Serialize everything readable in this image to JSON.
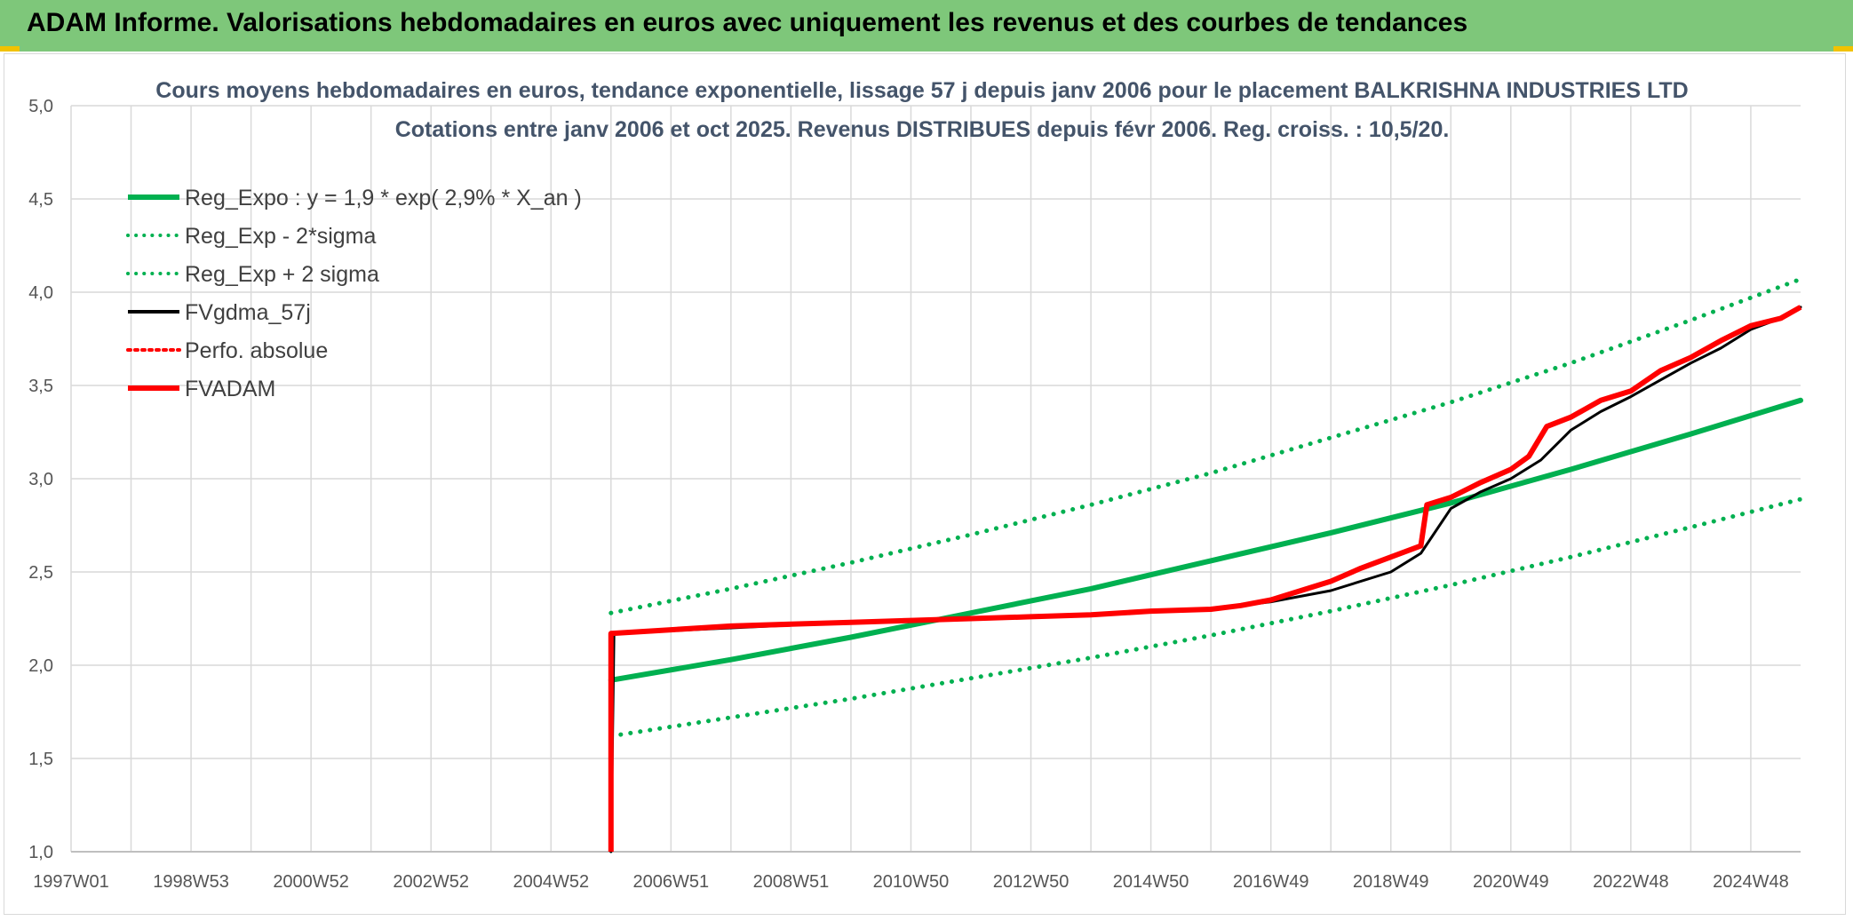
{
  "banner": {
    "title": "ADAM Informe. Valorisations hebdomadaires en euros avec uniquement les revenus et des courbes de tendances"
  },
  "colors": {
    "banner": "#7ec77a",
    "green": "#00b050",
    "red": "#ff0000",
    "black": "#000000",
    "grid": "#d9d9d9"
  },
  "chart_data": {
    "type": "line",
    "title": "Cours moyens hebdomadaires en euros, tendance exponentielle, lissage 57 j depuis janv 2006 pour le placement BALKRISHNA INDUSTRIES LTD",
    "subtitle": "Cotations entre janv 2006 et oct 2025. Revenus DISTRIBUES depuis févr 2006. Reg. croiss. : 10,5/20.",
    "xlabel": "",
    "ylabel": "",
    "x_tick_labels": [
      "1997W01",
      "1998W53",
      "2000W52",
      "2002W52",
      "2004W52",
      "2006W51",
      "2008W51",
      "2010W50",
      "2012W50",
      "2014W50",
      "2016W49",
      "2018W49",
      "2020W49",
      "2022W48",
      "2024W48"
    ],
    "x_range": [
      1997.0,
      2025.83
    ],
    "ylim": [
      1.0,
      5.0
    ],
    "y_ticks": [
      "1,0",
      "1,5",
      "2,0",
      "2,5",
      "3,0",
      "3,5",
      "4,0",
      "4,5",
      "5,0"
    ],
    "grid": true,
    "legend_position": "top-left",
    "legend": [
      {
        "name": "Reg_Expo : y = 1,9 * exp( 2,9% *  X_an )",
        "color": "#00b050",
        "style": "solid"
      },
      {
        "name": "Reg_Exp - 2*sigma",
        "color": "#00b050",
        "style": "dotted"
      },
      {
        "name": "Reg_Exp + 2 sigma",
        "color": "#00b050",
        "style": "dotted"
      },
      {
        "name": "FVgdma_57j",
        "color": "#000000",
        "style": "solid"
      },
      {
        "name": "Perfo. absolue",
        "color": "#ff0000",
        "style": "dotted"
      },
      {
        "name": "FVADAM",
        "color": "#ff0000",
        "style": "solid"
      }
    ],
    "series": [
      {
        "name": "Reg_Expo : y = 1,9 * exp( 2,9% *  X_an )",
        "color": "#00b050",
        "style": "solid",
        "x": [
          2006.0,
          2008.0,
          2010.0,
          2012.0,
          2014.0,
          2016.0,
          2018.0,
          2020.0,
          2022.0,
          2024.0,
          2025.83
        ],
        "y": [
          1.92,
          2.03,
          2.15,
          2.28,
          2.41,
          2.56,
          2.71,
          2.87,
          3.05,
          3.24,
          3.42
        ]
      },
      {
        "name": "Reg_Exp - 2*sigma",
        "color": "#00b050",
        "style": "dotted",
        "x": [
          2006.0,
          2008.0,
          2010.0,
          2012.0,
          2014.0,
          2016.0,
          2018.0,
          2020.0,
          2022.0,
          2024.0,
          2025.83
        ],
        "y": [
          1.62,
          1.72,
          1.82,
          1.93,
          2.04,
          2.16,
          2.29,
          2.43,
          2.58,
          2.74,
          2.89
        ]
      },
      {
        "name": "Reg_Exp + 2 sigma",
        "color": "#00b050",
        "style": "dotted",
        "x": [
          2006.0,
          2008.0,
          2010.0,
          2012.0,
          2014.0,
          2016.0,
          2018.0,
          2020.0,
          2022.0,
          2024.0,
          2025.83
        ],
        "y": [
          2.28,
          2.41,
          2.55,
          2.7,
          2.86,
          3.03,
          3.22,
          3.41,
          3.62,
          3.85,
          4.07
        ]
      },
      {
        "name": "FVgdma_57j",
        "color": "#000000",
        "style": "solid",
        "x": [
          2006.0,
          2006.05,
          2008.0,
          2010.0,
          2012.0,
          2014.0,
          2016.0,
          2017.0,
          2018.0,
          2019.0,
          2019.5,
          2020.0,
          2020.5,
          2021.0,
          2021.5,
          2022.0,
          2022.5,
          2023.0,
          2023.5,
          2024.0,
          2024.5,
          2025.0,
          2025.5,
          2025.83
        ],
        "y": [
          1.0,
          2.17,
          2.2,
          2.23,
          2.25,
          2.27,
          2.3,
          2.34,
          2.4,
          2.5,
          2.6,
          2.84,
          2.93,
          3.0,
          3.1,
          3.26,
          3.36,
          3.44,
          3.53,
          3.62,
          3.7,
          3.8,
          3.86,
          3.92
        ]
      },
      {
        "name": "FVADAM",
        "color": "#ff0000",
        "style": "solid",
        "x": [
          2006.0,
          2006.0,
          2007.0,
          2008.0,
          2009.0,
          2010.0,
          2011.0,
          2012.0,
          2013.0,
          2014.0,
          2015.0,
          2016.0,
          2016.5,
          2017.0,
          2017.5,
          2018.0,
          2018.5,
          2019.0,
          2019.5,
          2019.6,
          2020.0,
          2020.5,
          2021.0,
          2021.3,
          2021.6,
          2022.0,
          2022.5,
          2023.0,
          2023.5,
          2024.0,
          2024.5,
          2025.0,
          2025.5,
          2025.83
        ],
        "y": [
          1.0,
          2.17,
          2.19,
          2.21,
          2.22,
          2.23,
          2.24,
          2.25,
          2.26,
          2.27,
          2.29,
          2.3,
          2.32,
          2.35,
          2.4,
          2.45,
          2.52,
          2.58,
          2.64,
          2.86,
          2.9,
          2.98,
          3.05,
          3.12,
          3.28,
          3.33,
          3.42,
          3.47,
          3.58,
          3.65,
          3.74,
          3.82,
          3.86,
          3.92
        ]
      }
    ]
  }
}
